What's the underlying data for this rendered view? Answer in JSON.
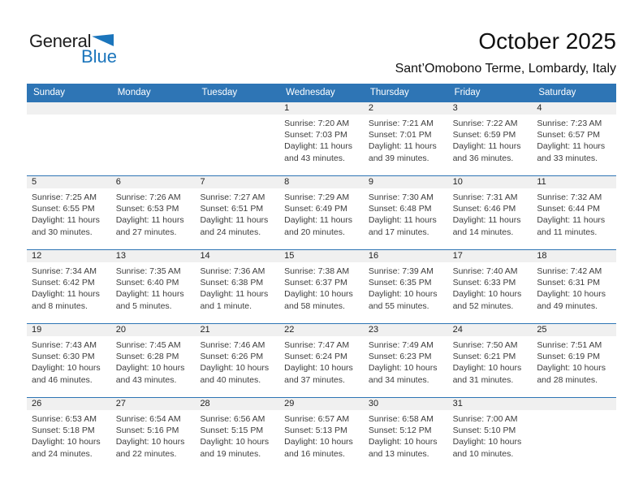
{
  "logo": {
    "part1": "General",
    "part2": "Blue"
  },
  "header": {
    "title": "October 2025",
    "subtitle": "Sant’Omobono Terme, Lombardy, Italy"
  },
  "colors": {
    "header_blue": "#2e75b5",
    "band_gray": "#f0f0f0",
    "logo_blue": "#1b75bc"
  },
  "calendar": {
    "weekdays": [
      "Sunday",
      "Monday",
      "Tuesday",
      "Wednesday",
      "Thursday",
      "Friday",
      "Saturday"
    ],
    "weeks": [
      [
        null,
        null,
        null,
        {
          "day": "1",
          "sunrise": "Sunrise: 7:20 AM",
          "sunset": "Sunset: 7:03 PM",
          "daylight": "Daylight: 11 hours and 43 minutes."
        },
        {
          "day": "2",
          "sunrise": "Sunrise: 7:21 AM",
          "sunset": "Sunset: 7:01 PM",
          "daylight": "Daylight: 11 hours and 39 minutes."
        },
        {
          "day": "3",
          "sunrise": "Sunrise: 7:22 AM",
          "sunset": "Sunset: 6:59 PM",
          "daylight": "Daylight: 11 hours and 36 minutes."
        },
        {
          "day": "4",
          "sunrise": "Sunrise: 7:23 AM",
          "sunset": "Sunset: 6:57 PM",
          "daylight": "Daylight: 11 hours and 33 minutes."
        }
      ],
      [
        {
          "day": "5",
          "sunrise": "Sunrise: 7:25 AM",
          "sunset": "Sunset: 6:55 PM",
          "daylight": "Daylight: 11 hours and 30 minutes."
        },
        {
          "day": "6",
          "sunrise": "Sunrise: 7:26 AM",
          "sunset": "Sunset: 6:53 PM",
          "daylight": "Daylight: 11 hours and 27 minutes."
        },
        {
          "day": "7",
          "sunrise": "Sunrise: 7:27 AM",
          "sunset": "Sunset: 6:51 PM",
          "daylight": "Daylight: 11 hours and 24 minutes."
        },
        {
          "day": "8",
          "sunrise": "Sunrise: 7:29 AM",
          "sunset": "Sunset: 6:49 PM",
          "daylight": "Daylight: 11 hours and 20 minutes."
        },
        {
          "day": "9",
          "sunrise": "Sunrise: 7:30 AM",
          "sunset": "Sunset: 6:48 PM",
          "daylight": "Daylight: 11 hours and 17 minutes."
        },
        {
          "day": "10",
          "sunrise": "Sunrise: 7:31 AM",
          "sunset": "Sunset: 6:46 PM",
          "daylight": "Daylight: 11 hours and 14 minutes."
        },
        {
          "day": "11",
          "sunrise": "Sunrise: 7:32 AM",
          "sunset": "Sunset: 6:44 PM",
          "daylight": "Daylight: 11 hours and 11 minutes."
        }
      ],
      [
        {
          "day": "12",
          "sunrise": "Sunrise: 7:34 AM",
          "sunset": "Sunset: 6:42 PM",
          "daylight": "Daylight: 11 hours and 8 minutes."
        },
        {
          "day": "13",
          "sunrise": "Sunrise: 7:35 AM",
          "sunset": "Sunset: 6:40 PM",
          "daylight": "Daylight: 11 hours and 5 minutes."
        },
        {
          "day": "14",
          "sunrise": "Sunrise: 7:36 AM",
          "sunset": "Sunset: 6:38 PM",
          "daylight": "Daylight: 11 hours and 1 minute."
        },
        {
          "day": "15",
          "sunrise": "Sunrise: 7:38 AM",
          "sunset": "Sunset: 6:37 PM",
          "daylight": "Daylight: 10 hours and 58 minutes."
        },
        {
          "day": "16",
          "sunrise": "Sunrise: 7:39 AM",
          "sunset": "Sunset: 6:35 PM",
          "daylight": "Daylight: 10 hours and 55 minutes."
        },
        {
          "day": "17",
          "sunrise": "Sunrise: 7:40 AM",
          "sunset": "Sunset: 6:33 PM",
          "daylight": "Daylight: 10 hours and 52 minutes."
        },
        {
          "day": "18",
          "sunrise": "Sunrise: 7:42 AM",
          "sunset": "Sunset: 6:31 PM",
          "daylight": "Daylight: 10 hours and 49 minutes."
        }
      ],
      [
        {
          "day": "19",
          "sunrise": "Sunrise: 7:43 AM",
          "sunset": "Sunset: 6:30 PM",
          "daylight": "Daylight: 10 hours and 46 minutes."
        },
        {
          "day": "20",
          "sunrise": "Sunrise: 7:45 AM",
          "sunset": "Sunset: 6:28 PM",
          "daylight": "Daylight: 10 hours and 43 minutes."
        },
        {
          "day": "21",
          "sunrise": "Sunrise: 7:46 AM",
          "sunset": "Sunset: 6:26 PM",
          "daylight": "Daylight: 10 hours and 40 minutes."
        },
        {
          "day": "22",
          "sunrise": "Sunrise: 7:47 AM",
          "sunset": "Sunset: 6:24 PM",
          "daylight": "Daylight: 10 hours and 37 minutes."
        },
        {
          "day": "23",
          "sunrise": "Sunrise: 7:49 AM",
          "sunset": "Sunset: 6:23 PM",
          "daylight": "Daylight: 10 hours and 34 minutes."
        },
        {
          "day": "24",
          "sunrise": "Sunrise: 7:50 AM",
          "sunset": "Sunset: 6:21 PM",
          "daylight": "Daylight: 10 hours and 31 minutes."
        },
        {
          "day": "25",
          "sunrise": "Sunrise: 7:51 AM",
          "sunset": "Sunset: 6:19 PM",
          "daylight": "Daylight: 10 hours and 28 minutes."
        }
      ],
      [
        {
          "day": "26",
          "sunrise": "Sunrise: 6:53 AM",
          "sunset": "Sunset: 5:18 PM",
          "daylight": "Daylight: 10 hours and 24 minutes."
        },
        {
          "day": "27",
          "sunrise": "Sunrise: 6:54 AM",
          "sunset": "Sunset: 5:16 PM",
          "daylight": "Daylight: 10 hours and 22 minutes."
        },
        {
          "day": "28",
          "sunrise": "Sunrise: 6:56 AM",
          "sunset": "Sunset: 5:15 PM",
          "daylight": "Daylight: 10 hours and 19 minutes."
        },
        {
          "day": "29",
          "sunrise": "Sunrise: 6:57 AM",
          "sunset": "Sunset: 5:13 PM",
          "daylight": "Daylight: 10 hours and 16 minutes."
        },
        {
          "day": "30",
          "sunrise": "Sunrise: 6:58 AM",
          "sunset": "Sunset: 5:12 PM",
          "daylight": "Daylight: 10 hours and 13 minutes."
        },
        {
          "day": "31",
          "sunrise": "Sunrise: 7:00 AM",
          "sunset": "Sunset: 5:10 PM",
          "daylight": "Daylight: 10 hours and 10 minutes."
        },
        null
      ]
    ]
  }
}
